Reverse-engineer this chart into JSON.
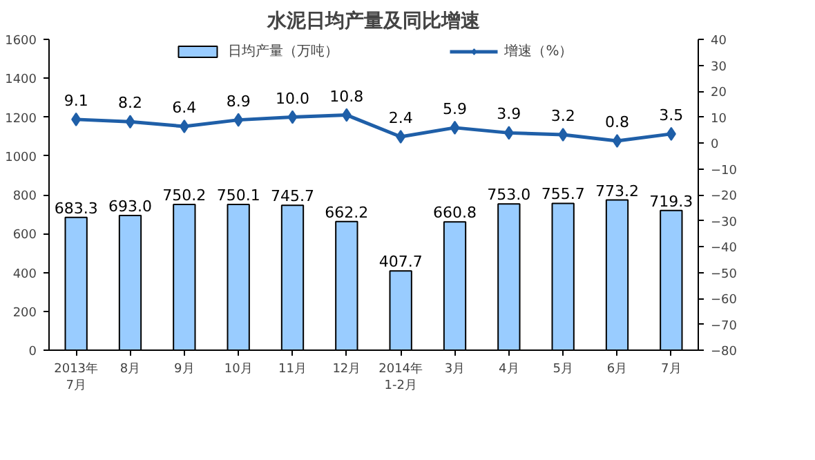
{
  "chart_data": {
    "type": "bar",
    "title": "水泥日均产量及同比增速",
    "categories": [
      "2013年\n7月",
      "8月",
      "9月",
      "10月",
      "11月",
      "12月",
      "2014年\n1-2月",
      "3月",
      "4月",
      "5月",
      "6月",
      "7月"
    ],
    "series": [
      {
        "name": "日均产量（万吨）",
        "color": "#99ccff",
        "values": [
          683.3,
          693.0,
          750.2,
          750.1,
          745.7,
          662.2,
          407.7,
          660.8,
          753.0,
          755.7,
          773.2,
          719.3
        ],
        "value_labels": [
          "683.3",
          "693.0",
          "750.2",
          "750.1",
          "745.7",
          "662.2",
          "407.7",
          "660.8",
          "753.0",
          "755.7",
          "773.2",
          "719.3"
        ]
      },
      {
        "name": "增速（%）",
        "type": "line",
        "axis": "y2",
        "color": "#1f5fa8",
        "marker": "diamond",
        "values": [
          9.1,
          8.2,
          6.4,
          8.9,
          10.0,
          10.8,
          2.4,
          5.9,
          3.9,
          3.2,
          0.8,
          3.5
        ],
        "value_labels": [
          "9.1",
          "8.2",
          "6.4",
          "8.9",
          "10.0",
          "10.8",
          "2.4",
          "5.9",
          "3.9",
          "3.2",
          "0.8",
          "3.5"
        ]
      }
    ],
    "ylim": [
      0,
      1600
    ],
    "yticks": [
      0,
      200,
      400,
      600,
      800,
      1000,
      1200,
      1400,
      1600
    ],
    "y2lim": [
      -80,
      40
    ],
    "y2ticks": [
      -80,
      -70,
      -60,
      -50,
      -40,
      -30,
      -20,
      -10,
      0,
      10,
      20,
      30,
      40
    ],
    "grid": false,
    "legend": "top"
  }
}
